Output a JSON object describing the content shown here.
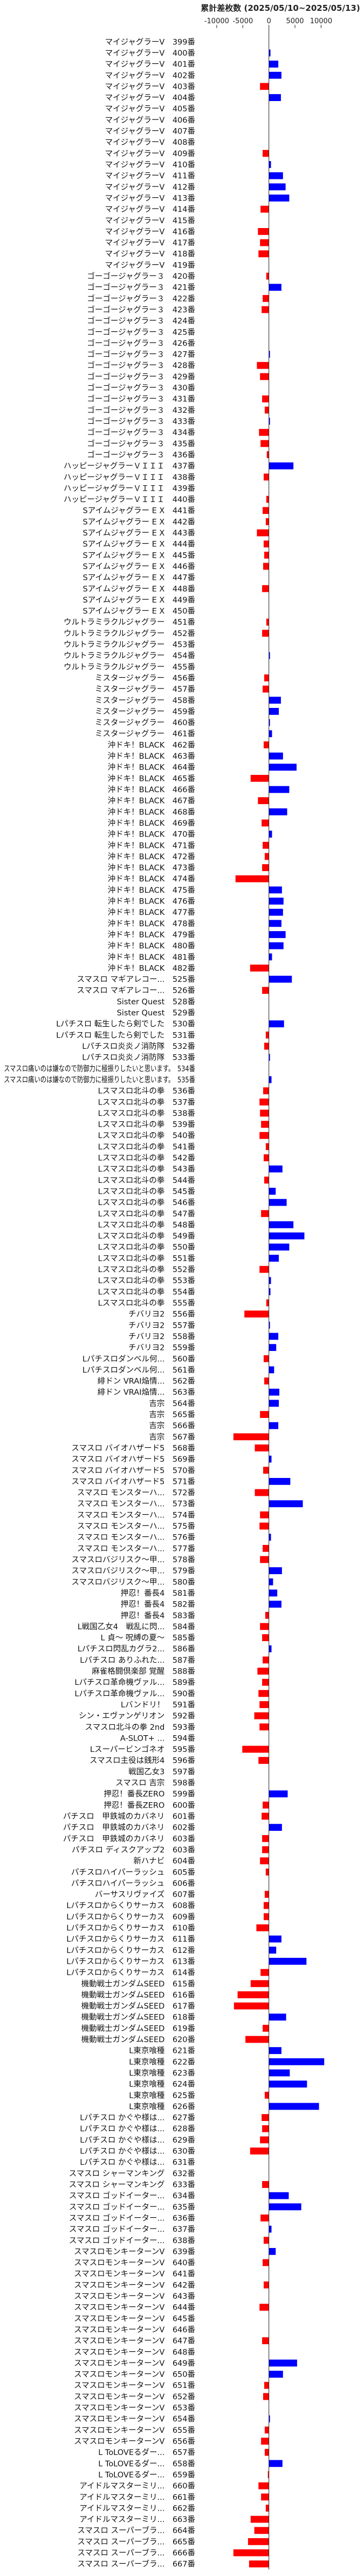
{
  "chart_data": {
    "type": "bar",
    "orientation": "horizontal",
    "title": "累計差枚数 (2025/05/10~2025/05/13)",
    "xlabel": "",
    "ylabel": "",
    "xlim": [
      -13500,
      17500
    ],
    "xticks": [
      -10000,
      -5000,
      0,
      5000,
      10000
    ],
    "grid": false,
    "legend": "none",
    "colors": {
      "positive": "#0000ff",
      "negative": "#ff0000",
      "axis": "#222222"
    },
    "categories": [
      "マイジャグラーV　399番",
      "マイジャグラーV　400番",
      "マイジャグラーV　401番",
      "マイジャグラーV　402番",
      "マイジャグラーV　403番",
      "マイジャグラーV　404番",
      "マイジャグラーV　405番",
      "マイジャグラーV　406番",
      "マイジャグラーV　407番",
      "マイジャグラーV　408番",
      "マイジャグラーV　409番",
      "マイジャグラーV　410番",
      "マイジャグラーV　411番",
      "マイジャグラーV　412番",
      "マイジャグラーV　413番",
      "マイジャグラーV　414番",
      "マイジャグラーV　415番",
      "マイジャグラーV　416番",
      "マイジャグラーV　417番",
      "マイジャグラーV　418番",
      "マイジャグラーV　419番",
      "ゴーゴージャグラー３　420番",
      "ゴーゴージャグラー３　421番",
      "ゴーゴージャグラー３　422番",
      "ゴーゴージャグラー３　423番",
      "ゴーゴージャグラー３　424番",
      "ゴーゴージャグラー３　425番",
      "ゴーゴージャグラー３　426番",
      "ゴーゴージャグラー３　427番",
      "ゴーゴージャグラー３　428番",
      "ゴーゴージャグラー３　429番",
      "ゴーゴージャグラー３　430番",
      "ゴーゴージャグラー３　431番",
      "ゴーゴージャグラー３　432番",
      "ゴーゴージャグラー３　433番",
      "ゴーゴージャグラー３　434番",
      "ゴーゴージャグラー３　435番",
      "ゴーゴージャグラー３　436番",
      "ハッピージャグラーＶＩＩＩ　437番",
      "ハッピージャグラーＶＩＩＩ　438番",
      "ハッピージャグラーＶＩＩＩ　439番",
      "ハッピージャグラーＶＩＩＩ　440番",
      "Sアイムジャグラー E X　441番",
      "Sアイムジャグラー E X　442番",
      "Sアイムジャグラー E X　443番",
      "Sアイムジャグラー E X　444番",
      "Sアイムジャグラー E X　445番",
      "Sアイムジャグラー E X　446番",
      "Sアイムジャグラー E X　447番",
      "Sアイムジャグラー E X　448番",
      "Sアイムジャグラー E X　449番",
      "Sアイムジャグラー E X　450番",
      "ウルトラミラクルジャグラー　451番",
      "ウルトラミラクルジャグラー　452番",
      "ウルトラミラクルジャグラー　453番",
      "ウルトラミラクルジャグラー　454番",
      "ウルトラミラクルジャグラー　455番",
      "ミスタージャグラー　456番",
      "ミスタージャグラー　457番",
      "ミスタージャグラー　458番",
      "ミスタージャグラー　459番",
      "ミスタージャグラー　460番",
      "ミスタージャグラー　461番",
      "沖ドキ！BLACK　462番",
      "沖ドキ！BLACK　463番",
      "沖ドキ！BLACK　464番",
      "沖ドキ！BLACK　465番",
      "沖ドキ！BLACK　466番",
      "沖ドキ！BLACK　467番",
      "沖ドキ！BLACK　468番",
      "沖ドキ！BLACK　469番",
      "沖ドキ！BLACK　470番",
      "沖ドキ！BLACK　471番",
      "沖ドキ！BLACK　472番",
      "沖ドキ！BLACK　473番",
      "沖ドキ！BLACK　474番",
      "沖ドキ！BLACK　475番",
      "沖ドキ！BLACK　476番",
      "沖ドキ！BLACK　477番",
      "沖ドキ！BLACK　478番",
      "沖ドキ！BLACK　479番",
      "沖ドキ！BLACK　480番",
      "沖ドキ！BLACK　481番",
      "沖ドキ！BLACK　482番",
      "スマスロ マギアレコー...　525番",
      "スマスロ マギアレコー...　526番",
      "Sister Quest　528番",
      "Sister Quest　529番",
      "Lパチスロ 転生したら剣でした　530番",
      "Lパチスロ 転生したら剣でした　531番",
      "Lパチスロ炎炎ノ消防隊　532番",
      "Lパチスロ炎炎ノ消防隊　533番",
      "スマスロ痛いのは嫌なので防御力に極振りしたいと思います。　534番",
      "スマスロ痛いのは嫌なので防御力に極振りしたいと思います。　535番",
      "Lスマスロ北斗の拳　536番",
      "Lスマスロ北斗の拳　537番",
      "Lスマスロ北斗の拳　538番",
      "Lスマスロ北斗の拳　539番",
      "Lスマスロ北斗の拳　540番",
      "Lスマスロ北斗の拳　541番",
      "Lスマスロ北斗の拳　542番",
      "Lスマスロ北斗の拳　543番",
      "Lスマスロ北斗の拳　544番",
      "Lスマスロ北斗の拳　545番",
      "Lスマスロ北斗の拳　546番",
      "Lスマスロ北斗の拳　547番",
      "Lスマスロ北斗の拳　548番",
      "Lスマスロ北斗の拳　549番",
      "Lスマスロ北斗の拳　550番",
      "Lスマスロ北斗の拳　551番",
      "Lスマスロ北斗の拳　552番",
      "Lスマスロ北斗の拳　553番",
      "Lスマスロ北斗の拳　554番",
      "Lスマスロ北斗の拳　555番",
      "チバリヨ2　556番",
      "チバリヨ2　557番",
      "チバリヨ2　558番",
      "チバリヨ2　559番",
      "Lパチスロダンベル何...　560番",
      "Lパチスロダンベル何...　561番",
      "緋ドン VRAI焔情...　562番",
      "緋ドン VRAI焔情...　563番",
      "吉宗　564番",
      "吉宗　565番",
      "吉宗　566番",
      "吉宗　567番",
      "スマスロ バイオハザード5　568番",
      "スマスロ バイオハザード5　569番",
      "スマスロ バイオハザード5　570番",
      "スマスロ バイオハザード5　571番",
      "スマスロ モンスターハ...　572番",
      "スマスロ モンスターハ...　573番",
      "スマスロ モンスターハ...　574番",
      "スマスロ モンスターハ...　575番",
      "スマスロ モンスターハ...　576番",
      "スマスロ モンスターハ...　577番",
      "スマスロバジリスク～甲...　578番",
      "スマスロバジリスク～甲...　579番",
      "スマスロバジリスク～甲...　580番",
      "押忍！番長4　581番",
      "押忍！番長4　582番",
      "押忍！番長4　583番",
      "L戦国乙女4　戦乱に閃...　584番",
      "L 貞～ 呪縛の夏～　585番",
      "Lパチスロ閃乱カグラ2...　586番",
      "Lパチスロ ありふれた...　587番",
      "麻雀格闘倶楽部 覚醒　588番",
      "Lパチスロ革命機ヴァル...　589番",
      "Lパチスロ革命機ヴァル...　590番",
      "Lバンドリ！　591番",
      "シン・エヴァンゲリオン　592番",
      "スマスロ北斗の拳 2nd　593番",
      "A-SLOT+ ...　594番",
      "Lスーパービンゴネオ　595番",
      "スマスロ主役は銭形4　596番",
      "戦国乙女3　597番",
      "スマスロ 吉宗　598番",
      "押忍！番長ZERO　599番",
      "押忍！番長ZERO　600番",
      "パチスロ　甲鉄城のカバネリ　601番",
      "パチスロ　甲鉄城のカバネリ　602番",
      "パチスロ　甲鉄城のカバネリ　603番",
      "パチスロ ディスクアップ2　603番",
      "新ハナビ　604番",
      "パチスロハイパーラッシュ　605番",
      "パチスロハイパーラッシュ　606番",
      "バーサスリヴァイズ　607番",
      "Lパチスロからくりサーカス　608番",
      "Lパチスロからくりサーカス　609番",
      "Lパチスロからくりサーカス　610番",
      "Lパチスロからくりサーカス　611番",
      "Lパチスロからくりサーカス　612番",
      "Lパチスロからくりサーカス　613番",
      "Lパチスロからくりサーカス　614番",
      "機動戦士ガンダムSEED　615番",
      "機動戦士ガンダムSEED　616番",
      "機動戦士ガンダムSEED　617番",
      "機動戦士ガンダムSEED　618番",
      "機動戦士ガンダムSEED　619番",
      "機動戦士ガンダムSEED　620番",
      "L東京喰種　621番",
      "L東京喰種　622番",
      "L東京喰種　623番",
      "L東京喰種　624番",
      "L東京喰種　625番",
      "L東京喰種　626番",
      "Lパチスロ かぐや様は...　627番",
      "Lパチスロ かぐや様は...　628番",
      "Lパチスロ かぐや様は...　629番",
      "Lパチスロ かぐや様は...　630番",
      "Lパチスロ かぐや様は...　631番",
      "スマスロ シャーマンキング　632番",
      "スマスロ シャーマンキング　633番",
      "スマスロ ゴッドイーター...　634番",
      "スマスロ ゴッドイーター...　635番",
      "スマスロ ゴッドイーター...　636番",
      "スマスロ ゴッドイーター...　637番",
      "スマスロ ゴッドイーター...　638番",
      "スマスロモンキーターンV　639番",
      "スマスロモンキーターンV　640番",
      "スマスロモンキーターンV　641番",
      "スマスロモンキーターンV　642番",
      "スマスロモンキーターンV　643番",
      "スマスロモンキーターンV　644番",
      "スマスロモンキーターンV　645番",
      "スマスロモンキーターンV　646番",
      "スマスロモンキーターンV　647番",
      "スマスロモンキーターンV　648番",
      "スマスロモンキーターンV　649番",
      "スマスロモンキーターンV　650番",
      "スマスロモンキーターンV　651番",
      "スマスロモンキーターンV　652番",
      "スマスロモンキーターンV　653番",
      "スマスロモンキーターンV　654番",
      "スマスロモンキーターンV　655番",
      "スマスロモンキーターンV　656番",
      "L ToLOVEるダー...　657番",
      "L ToLOVEるダー...　658番",
      "L ToLOVEるダー...　659番",
      "アイドルマスターミリ...　660番",
      "アイドルマスターミリ...　661番",
      "アイドルマスターミリ...　662番",
      "アイドルマスターミリ...　663番",
      "スマスロ スーパーブラ...　664番",
      "スマスロ スーパーブラ...　665番",
      "スマスロ スーパーブラ...　666番",
      "スマスロ スーパーブラ...　667番"
    ],
    "values": [
      0,
      300,
      1800,
      2400,
      -1700,
      2300,
      0,
      0,
      0,
      0,
      -1200,
      400,
      2700,
      3200,
      3900,
      -1600,
      0,
      -2100,
      -1700,
      -2000,
      0,
      -500,
      2400,
      -1200,
      -1400,
      0,
      0,
      0,
      200,
      -2300,
      -1700,
      0,
      -1300,
      -800,
      200,
      -1900,
      -1600,
      -400,
      4700,
      -1000,
      0,
      -500,
      -1200,
      -600,
      -2300,
      -1000,
      -900,
      -1100,
      0,
      -1300,
      0,
      0,
      -500,
      -1300,
      0,
      200,
      0,
      -900,
      -1200,
      2300,
      1900,
      200,
      600,
      -1000,
      2700,
      5300,
      -3500,
      3900,
      -2100,
      3500,
      -1400,
      600,
      -1200,
      -800,
      -1300,
      -6400,
      2500,
      2800,
      2700,
      2400,
      3200,
      2800,
      600,
      -3600,
      4400,
      -1300,
      0,
      0,
      2900,
      -600,
      -900,
      200,
      0,
      500,
      -1100,
      -1800,
      -1700,
      -1500,
      -1800,
      -600,
      -1000,
      2600,
      -900,
      1300,
      3400,
      -1500,
      4700,
      6800,
      3900,
      1900,
      -1800,
      400,
      300,
      -500,
      -4700,
      200,
      1800,
      1400,
      -1000,
      1000,
      -900,
      2000,
      1900,
      -1700,
      1800,
      -6800,
      -2700,
      500,
      -1100,
      4100,
      -2700,
      6500,
      -1700,
      -1800,
      400,
      -1200,
      -1700,
      2500,
      800,
      1600,
      2400,
      -700,
      -1700,
      -1300,
      500,
      -1200,
      -2200,
      -1300,
      -2000,
      -1800,
      -2800,
      -1800,
      0,
      -5100,
      -2000,
      0,
      0,
      3600,
      -1200,
      -1400,
      2500,
      -1300,
      -1300,
      -1700,
      -600,
      0,
      -800,
      -1000,
      -1000,
      -2400,
      2400,
      1400,
      7200,
      -1600,
      -3500,
      -6000,
      -6700,
      3300,
      -1200,
      -4500,
      2400,
      10600,
      4000,
      7300,
      -800,
      9600,
      -1400,
      -1300,
      -1700,
      -3600,
      0,
      0,
      -1300,
      3800,
      6200,
      -1600,
      500,
      -1000,
      1300,
      -1200,
      0,
      -1000,
      0,
      -1800,
      0,
      0,
      -1300,
      0,
      5400,
      2700,
      -900,
      -1100,
      0,
      200,
      -800,
      -1500,
      -800,
      2600,
      -200,
      -2000,
      -1500,
      -600,
      -3500,
      -2800,
      -4000,
      -6800,
      -3800
    ]
  }
}
